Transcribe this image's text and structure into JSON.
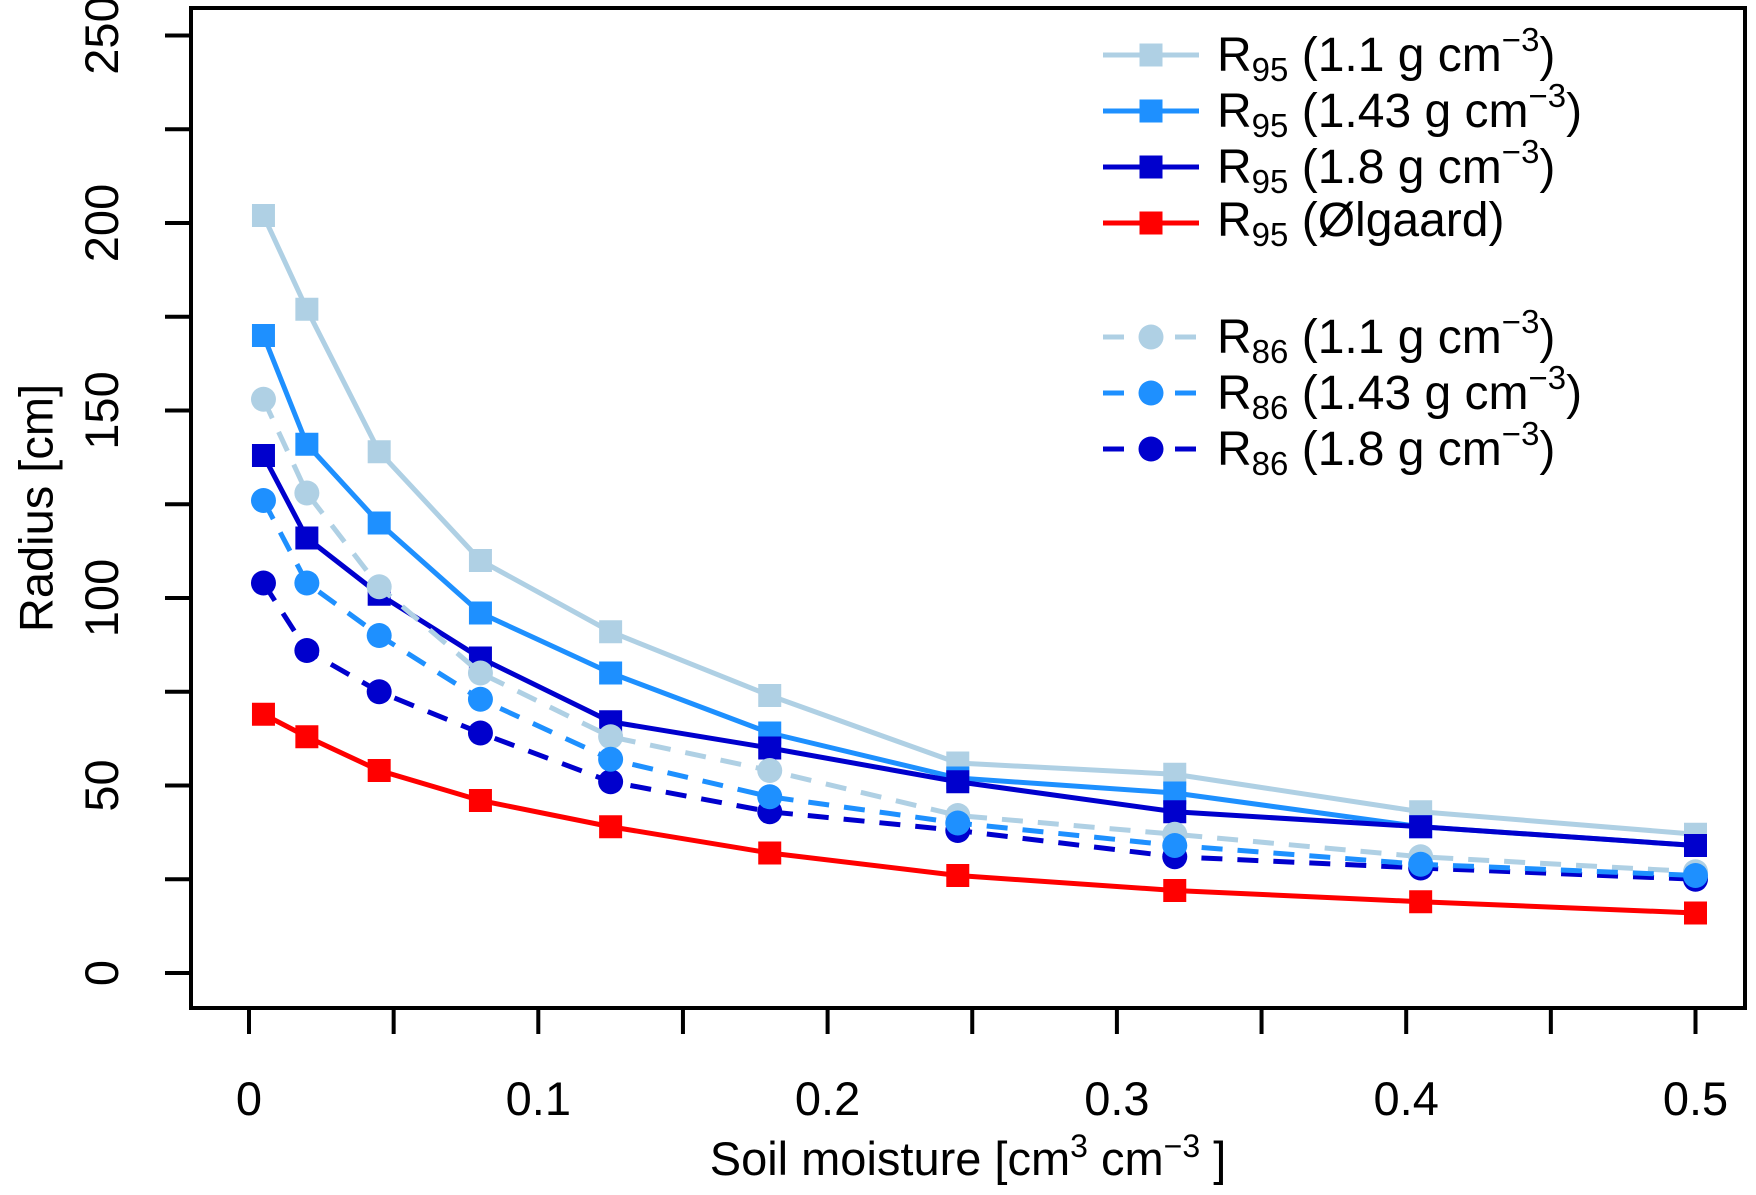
{
  "chart_data": {
    "type": "line",
    "title": "",
    "ylabel": "Radius [cm]",
    "xlabel_plain": "Soil moisture [cm3 cm-3 ]",
    "xlabel_parts": {
      "pre": "Soil moisture [cm",
      "sup1": "3",
      "mid": " cm",
      "sup2": "−3",
      "post": " ]"
    },
    "xlim": [
      0,
      0.5
    ],
    "ylim": [
      0,
      250
    ],
    "grid": "off",
    "legend_position": "top-right",
    "x": [
      0.005,
      0.02,
      0.045,
      0.08,
      0.125,
      0.18,
      0.245,
      0.32,
      0.405,
      0.5
    ],
    "x_axis": {
      "ticks": [
        0,
        0.05,
        0.1,
        0.15,
        0.2,
        0.25,
        0.3,
        0.35,
        0.4,
        0.45,
        0.5
      ],
      "labels": [
        {
          "v": 0,
          "t": "0"
        },
        {
          "v": 0.1,
          "t": "0.1"
        },
        {
          "v": 0.2,
          "t": "0.2"
        },
        {
          "v": 0.3,
          "t": "0.3"
        },
        {
          "v": 0.4,
          "t": "0.4"
        },
        {
          "v": 0.5,
          "t": "0.5"
        }
      ]
    },
    "y_axis": {
      "ticks": [
        0,
        25,
        50,
        75,
        100,
        125,
        150,
        175,
        200,
        225,
        250
      ],
      "labels": [
        {
          "v": 0,
          "t": "0"
        },
        {
          "v": 50,
          "t": "50"
        },
        {
          "v": 100,
          "t": "100"
        },
        {
          "v": 150,
          "t": "150"
        },
        {
          "v": 200,
          "t": "200"
        },
        {
          "v": 250,
          "t": "250"
        }
      ]
    },
    "series": [
      {
        "label_plain": "R95 (1.1 g cm-3)",
        "r_sub": "95",
        "body": "1.1 g cm",
        "exp": "−3",
        "marker": "square",
        "line": "solid",
        "color": "#AFD0E4",
        "values": [
          202,
          177,
          139,
          110,
          91,
          74,
          56,
          53,
          43,
          37
        ]
      },
      {
        "label_plain": "R95 (1.43 g cm-3)",
        "r_sub": "95",
        "body": "1.43 g cm",
        "exp": "−3",
        "marker": "square",
        "line": "solid",
        "color": "#1E90FF",
        "values": [
          170,
          141,
          120,
          96,
          80,
          64,
          52,
          48,
          39,
          34
        ]
      },
      {
        "label_plain": "R95 (1.8 g cm-3)",
        "r_sub": "95",
        "body": "1.8 g cm",
        "exp": "−3",
        "marker": "square",
        "line": "solid",
        "color": "#0000CD",
        "values": [
          138,
          116,
          101,
          84,
          67,
          60,
          51,
          43,
          39,
          34
        ]
      },
      {
        "label_plain": "R95 (Ølgaard)",
        "r_sub": "95",
        "body": "Ølgaard",
        "exp": "",
        "marker": "square",
        "line": "solid",
        "color": "#FF0000",
        "values": [
          69,
          63,
          54,
          46,
          39,
          32,
          26,
          22,
          19,
          16
        ]
      },
      {
        "label_plain": "R86 (1.1 g cm-3)",
        "r_sub": "86",
        "body": "1.1 g cm",
        "exp": "−3",
        "marker": "circle",
        "line": "dashed",
        "color": "#AFD0E4",
        "values": [
          153,
          128,
          103,
          80,
          63,
          54,
          42,
          37,
          31,
          27
        ]
      },
      {
        "label_plain": "R86 (1.43 g cm-3)",
        "r_sub": "86",
        "body": "1.43 g cm",
        "exp": "−3",
        "marker": "circle",
        "line": "dashed",
        "color": "#1E90FF",
        "values": [
          126,
          104,
          90,
          73,
          57,
          47,
          40,
          34,
          29,
          26
        ]
      },
      {
        "label_plain": "R86 (1.8 g cm-3)",
        "r_sub": "86",
        "body": "1.8 g cm",
        "exp": "−3",
        "marker": "circle",
        "line": "dashed",
        "color": "#0000CD",
        "values": [
          104,
          86,
          75,
          64,
          51,
          43,
          38,
          31,
          28,
          25
        ]
      }
    ],
    "legend_groups": [
      [
        0,
        1,
        2,
        3
      ],
      [
        4,
        5,
        6
      ]
    ],
    "draw_order": [
      0,
      1,
      2,
      3,
      4,
      6,
      5
    ],
    "axis_color": "#000000"
  }
}
